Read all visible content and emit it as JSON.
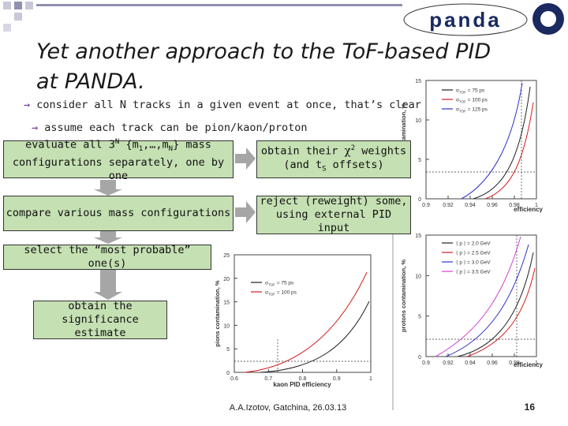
{
  "header": {
    "title_line_1": "Yet another approach to the ToF-based PID",
    "title_line_2": "at PANDA.",
    "logo": "panda"
  },
  "bullets": [
    "consider all N tracks in a given event at once, that’s clear",
    "assume each track can be pion/kaon/proton"
  ],
  "boxes": {
    "evaluate": {
      "segments": [
        "evaluate all 3",
        "N",
        " {m",
        "1",
        ",…,m",
        "N",
        "} mass"
      ],
      "line_2": "configurations separately, one by one"
    },
    "compare": {
      "text": "compare  various mass configurations"
    },
    "select": {
      "text": "select the “most probable” one(s)"
    },
    "significance": {
      "line_1": "obtain the",
      "line_2": "significance estimate"
    },
    "weights": {
      "segments": [
        "obtain their ",
        "χ",
        "2",
        " weights"
      ],
      "line_2_segments": [
        "(and t",
        "S",
        " offsets)"
      ]
    },
    "reject": {
      "line_1": "reject (reweight) some,",
      "line_2": "using external PID input"
    }
  },
  "figures": [
    {
      "ylabel": "protons contamination, %",
      "xlabel": "efficiency",
      "yticks": [
        "15",
        "10",
        "5",
        "0"
      ],
      "xticks": [
        "0.9",
        "0.92",
        "0.94",
        "0.96",
        "0.98",
        "1"
      ],
      "legend": [
        [
          "σ",
          "TOF",
          " = 75 ps"
        ],
        [
          "σ",
          "TOF",
          " = 100 ps"
        ],
        [
          "σ",
          "TOF",
          " = 125 ps"
        ]
      ],
      "colors": [
        "#222222",
        "#d22020",
        "#3030c8"
      ]
    },
    {
      "ylabel": "protons contamination, %",
      "xlabel": "efficiency",
      "yticks": [
        "15",
        "10",
        "5",
        "0"
      ],
      "xticks": [
        "0.9",
        "0.92",
        "0.94",
        "0.96",
        "0.98",
        "1"
      ],
      "legend": [
        [
          "⟨ p ⟩ = 2.0 GeV"
        ],
        [
          "⟨ p ⟩ = 2.5 GeV"
        ],
        [
          "⟨ p ⟩ = 3.0 GeV"
        ],
        [
          "⟨ p ⟩ = 3.5 GeV"
        ]
      ],
      "colors": [
        "#222222",
        "#d22020",
        "#3030c8",
        "#d040d0"
      ]
    },
    {
      "ylabel": "pions contamination, %",
      "xlabel": "kaon PID efficiency",
      "yticks": [
        "25",
        "20",
        "15",
        "10",
        "5",
        "0"
      ],
      "xticks": [
        "0.6",
        "0.7",
        "0.8",
        "0.9",
        "1"
      ],
      "legend": [
        [
          "σ",
          "TOF",
          " = 75 ps"
        ],
        [
          "σ",
          "TOF",
          " = 100 ps"
        ]
      ],
      "colors": [
        "#222222",
        "#d22020"
      ]
    }
  ],
  "footer": {
    "author": "A.A.Izotov, Gatchina, 26.03.13",
    "page": "16"
  }
}
